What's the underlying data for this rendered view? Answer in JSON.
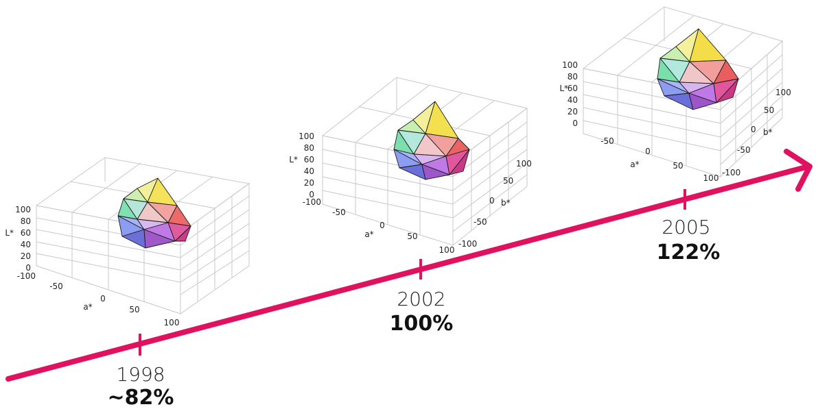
{
  "timeline": {
    "color": "#e0115f",
    "milestones": [
      {
        "year": "1998",
        "value": "~82%"
      },
      {
        "year": "2002",
        "value": "100%"
      },
      {
        "year": "2005",
        "value": "122%"
      }
    ]
  },
  "gamut_plots": [
    {
      "z_label": "L*",
      "a_label": "a*",
      "b_label": "",
      "z_ticks": [
        "100",
        "80",
        "60",
        "40",
        "20",
        "0"
      ],
      "a_ticks": [
        "-100",
        "-50",
        "0",
        "50",
        "100"
      ],
      "b_ticks": []
    },
    {
      "z_label": "L*",
      "a_label": "a*",
      "b_label": "b*",
      "z_ticks": [
        "100",
        "80",
        "60",
        "40",
        "20",
        "0"
      ],
      "a_ticks": [
        "-100",
        "-50",
        "0",
        "50",
        "100"
      ],
      "b_ticks": [
        "100",
        "50",
        "0",
        "-50",
        "-100"
      ]
    },
    {
      "z_label": "L*",
      "a_label": "a*",
      "b_label": "b*",
      "z_ticks": [
        "100",
        "80",
        "60",
        "40",
        "20",
        "0"
      ],
      "a_ticks": [
        "-50",
        "0",
        "50",
        "100"
      ],
      "b_ticks": [
        "100",
        "50",
        "0",
        "-50",
        "-100"
      ]
    }
  ]
}
